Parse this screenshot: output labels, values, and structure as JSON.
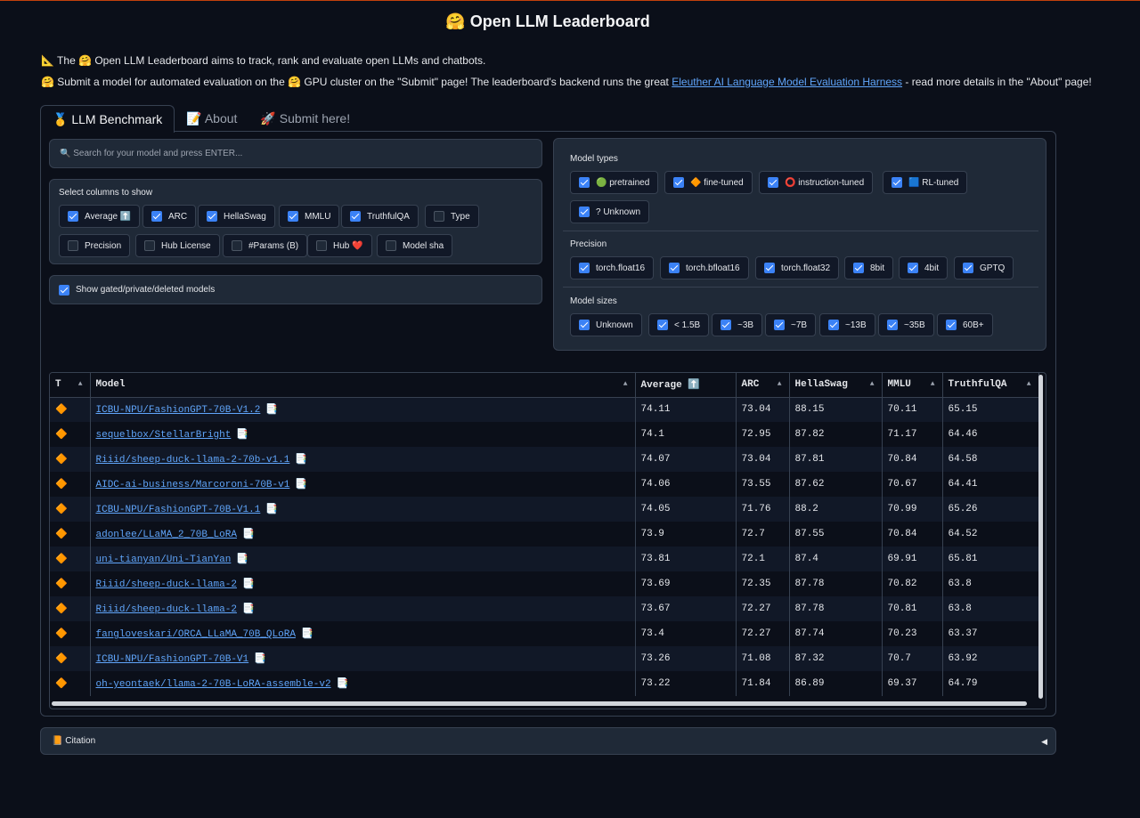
{
  "title": "🤗 Open LLM Leaderboard",
  "intro": {
    "line1": "📐 The 🤗 Open LLM Leaderboard aims to track, rank and evaluate open LLMs and chatbots.",
    "line2_pre": "🤗 Submit a model for automated evaluation on the 🤗 GPU cluster on the \"Submit\" page! The leaderboard's backend runs the great ",
    "line2_link": "Eleuther AI Language Model Evaluation Harness",
    "line2_post": " - read more details in the \"About\" page!"
  },
  "tabs": [
    "🥇 LLM Benchmark",
    "📝 About",
    "🚀 Submit here!"
  ],
  "search": {
    "placeholder": "🔍 Search for your model and press ENTER..."
  },
  "columns_panel": {
    "label": "Select columns to show",
    "items": [
      {
        "label": "Average ⬆️",
        "checked": true
      },
      {
        "label": "ARC",
        "checked": true
      },
      {
        "label": "HellaSwag",
        "checked": true
      },
      {
        "label": "MMLU",
        "checked": true
      },
      {
        "label": "TruthfulQA",
        "checked": true
      },
      {
        "label": "Type",
        "checked": false
      },
      {
        "label": "Precision",
        "checked": false
      },
      {
        "label": "Hub License",
        "checked": false
      },
      {
        "label": "#Params (B)",
        "checked": false
      },
      {
        "label": "Hub ❤️",
        "checked": false
      },
      {
        "label": "Model sha",
        "checked": false
      }
    ]
  },
  "gated": {
    "label": "Show gated/private/deleted models",
    "checked": true
  },
  "model_types": {
    "label": "Model types",
    "items": [
      "🟢 pretrained",
      "🔶 fine-tuned",
      "⭕ instruction-tuned",
      "🟦 RL-tuned",
      "? Unknown"
    ]
  },
  "precision": {
    "label": "Precision",
    "items": [
      "torch.float16",
      "torch.bfloat16",
      "torch.float32",
      "8bit",
      "4bit",
      "GPTQ"
    ]
  },
  "model_sizes": {
    "label": "Model sizes",
    "items": [
      "Unknown",
      "< 1.5B",
      "~3B",
      "~7B",
      "~13B",
      "~35B",
      "60B+"
    ]
  },
  "table": {
    "headers": [
      "T",
      "Model",
      "Average ⬆️",
      "ARC",
      "HellaSwag",
      "MMLU",
      "TruthfulQA"
    ],
    "paper_icon": "📑",
    "rows": [
      [
        "🔶",
        "ICBU-NPU/FashionGPT-70B-V1.2",
        "74.11",
        "73.04",
        "88.15",
        "70.11",
        "65.15"
      ],
      [
        "🔶",
        "sequelbox/StellarBright",
        "74.1",
        "72.95",
        "87.82",
        "71.17",
        "64.46"
      ],
      [
        "🔶",
        "Riiid/sheep-duck-llama-2-70b-v1.1",
        "74.07",
        "73.04",
        "87.81",
        "70.84",
        "64.58"
      ],
      [
        "🔶",
        "AIDC-ai-business/Marcoroni-70B-v1",
        "74.06",
        "73.55",
        "87.62",
        "70.67",
        "64.41"
      ],
      [
        "🔶",
        "ICBU-NPU/FashionGPT-70B-V1.1",
        "74.05",
        "71.76",
        "88.2",
        "70.99",
        "65.26"
      ],
      [
        "🔶",
        "adonlee/LLaMA_2_70B_LoRA",
        "73.9",
        "72.7",
        "87.55",
        "70.84",
        "64.52"
      ],
      [
        "🔶",
        "uni-tianyan/Uni-TianYan",
        "73.81",
        "72.1",
        "87.4",
        "69.91",
        "65.81"
      ],
      [
        "🔶",
        "Riiid/sheep-duck-llama-2",
        "73.69",
        "72.35",
        "87.78",
        "70.82",
        "63.8"
      ],
      [
        "🔶",
        "Riiid/sheep-duck-llama-2",
        "73.67",
        "72.27",
        "87.78",
        "70.81",
        "63.8"
      ],
      [
        "🔶",
        "fangloveskari/ORCA_LLaMA_70B_QLoRA",
        "73.4",
        "72.27",
        "87.74",
        "70.23",
        "63.37"
      ],
      [
        "🔶",
        "ICBU-NPU/FashionGPT-70B-V1",
        "73.26",
        "71.08",
        "87.32",
        "70.7",
        "63.92"
      ],
      [
        "🔶",
        "oh-yeontaek/llama-2-70B-LoRA-assemble-v2",
        "73.22",
        "71.84",
        "86.89",
        "69.37",
        "64.79"
      ]
    ]
  },
  "citation": {
    "label": "📙 Citation",
    "caret": "◀"
  }
}
